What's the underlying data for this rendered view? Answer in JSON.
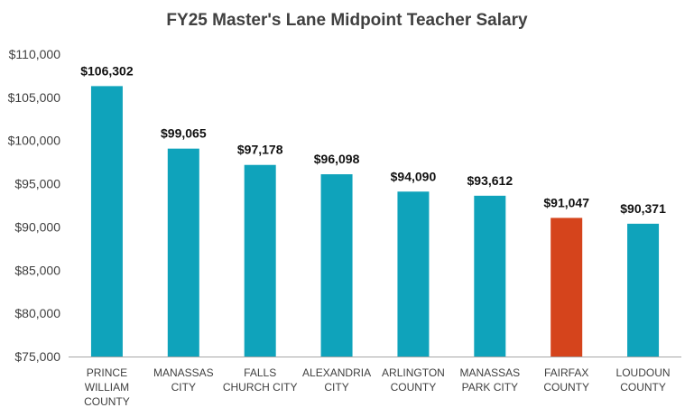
{
  "chart_data": {
    "type": "bar",
    "title": "FY25 Master's Lane Midpoint Teacher Salary",
    "xlabel": "",
    "ylabel": "",
    "categories": [
      [
        "PRINCE",
        "WILLIAM",
        "COUNTY"
      ],
      [
        "MANASSAS",
        "CITY"
      ],
      [
        "FALLS",
        "CHURCH CITY"
      ],
      [
        "ALEXANDRIA",
        "CITY"
      ],
      [
        "ARLINGTON",
        "COUNTY"
      ],
      [
        "MANASSAS",
        "PARK CITY"
      ],
      [
        "FAIRFAX",
        "COUNTY"
      ],
      [
        "LOUDOUN",
        "COUNTY"
      ]
    ],
    "values": [
      106302,
      99065,
      97178,
      96098,
      94090,
      93612,
      91047,
      90371
    ],
    "data_labels": [
      "$106,302",
      "$99,065",
      "$97,178",
      "$96,098",
      "$94,090",
      "$93,612",
      "$91,047",
      "$90,371"
    ],
    "ylim": [
      75000,
      110000
    ],
    "yticks": [
      75000,
      80000,
      85000,
      90000,
      95000,
      100000,
      105000,
      110000
    ],
    "ytick_labels": [
      "$75,000",
      "$80,000",
      "$85,000",
      "$90,000",
      "$95,000",
      "$100,000",
      "$105,000",
      "$110,000"
    ],
    "grid": false,
    "legend": "none",
    "colors": {
      "default_bar": "#0fa3bb",
      "highlight_bar": "#d5441c",
      "axis": "#a6a6a6"
    },
    "highlight_category_index": 6
  }
}
